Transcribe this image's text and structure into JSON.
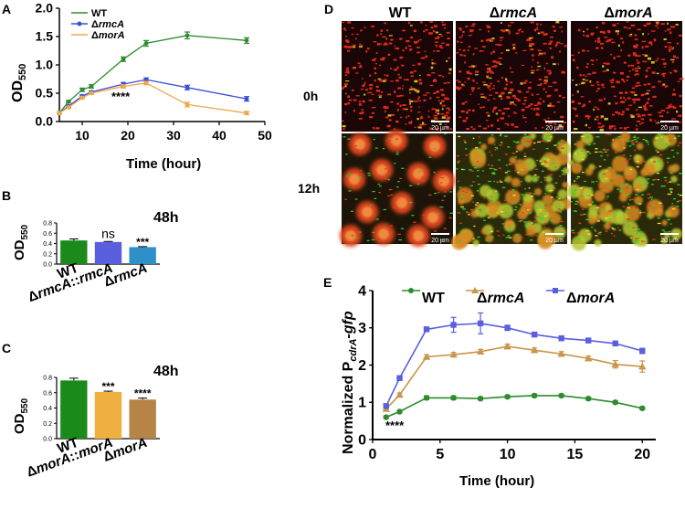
{
  "panel_labels": {
    "a": "A",
    "b": "B",
    "c": "C",
    "d": "D",
    "e": "E"
  },
  "chart_data": [
    {
      "panel": "A",
      "type": "line",
      "xlabel": "Time (hour)",
      "ylabel": "OD",
      "ylabel_sub": "550",
      "xlim": [
        5,
        50
      ],
      "ylim": [
        0,
        2
      ],
      "xticks": [
        "10",
        "20",
        "30",
        "40",
        "50"
      ],
      "yticks": [
        "0.0",
        "0.5",
        "1.0",
        "1.5",
        "2.0"
      ],
      "annotation": "****",
      "legend_prefix": "Δ",
      "series": [
        {
          "name": "WT",
          "italic": false,
          "color": "#2e8b2e",
          "x": [
            5,
            7,
            10,
            12,
            19,
            24,
            33,
            46
          ],
          "y": [
            0.15,
            0.35,
            0.56,
            0.62,
            1.1,
            1.38,
            1.52,
            1.43
          ],
          "err": [
            0.02,
            0.02,
            0.03,
            0.03,
            0.04,
            0.05,
            0.06,
            0.05
          ]
        },
        {
          "name": "rmcA",
          "italic": true,
          "color": "#3a4fd4",
          "x": [
            5,
            7,
            10,
            12,
            19,
            24,
            33,
            46
          ],
          "y": [
            0.15,
            0.27,
            0.45,
            0.52,
            0.66,
            0.74,
            0.6,
            0.4
          ],
          "err": [
            0.02,
            0.02,
            0.02,
            0.02,
            0.03,
            0.03,
            0.04,
            0.04
          ]
        },
        {
          "name": "morA",
          "italic": true,
          "color": "#f0a84c",
          "x": [
            5,
            7,
            10,
            12,
            19,
            24,
            33,
            46
          ],
          "y": [
            0.15,
            0.25,
            0.42,
            0.5,
            0.62,
            0.68,
            0.3,
            0.15
          ],
          "err": [
            0.02,
            0.02,
            0.02,
            0.02,
            0.03,
            0.03,
            0.04,
            0.03
          ]
        }
      ]
    },
    {
      "panel": "B",
      "type": "bar",
      "title": "48h",
      "ylabel": "OD",
      "ylabel_sub": "550",
      "ylim": [
        0,
        0.8
      ],
      "yticks": [
        "0.0",
        "0.2",
        "0.4",
        "0.6",
        "0.8"
      ],
      "categories": [
        "WT",
        "ΔrmcA::rmcA",
        "ΔrmcA"
      ],
      "values": [
        0.46,
        0.43,
        0.33
      ],
      "err": [
        0.03,
        0.01,
        0.01
      ],
      "colors": [
        "#1a8a1a",
        "#5a5fe0",
        "#2e8fc9"
      ],
      "annotations": [
        "",
        "ns",
        "***"
      ]
    },
    {
      "panel": "C",
      "type": "bar",
      "title": "48h",
      "ylabel": "OD",
      "ylabel_sub": "550",
      "ylim": [
        0,
        0.8
      ],
      "yticks": [
        "0.0",
        "0.2",
        "0.4",
        "0.6",
        "0.8"
      ],
      "categories": [
        "WT",
        "ΔmorA::morA",
        "ΔmorA"
      ],
      "values": [
        0.76,
        0.61,
        0.51
      ],
      "err": [
        0.03,
        0.01,
        0.02
      ],
      "colors": [
        "#1a8a1a",
        "#f0b040",
        "#b58446"
      ],
      "annotations": [
        "",
        "***",
        "****"
      ]
    },
    {
      "panel": "E",
      "type": "line",
      "xlabel": "Time (hour)",
      "ylabel": "Normalized P",
      "ylabel_sub": "cdrA",
      "ylabel_suffix": "-gfp",
      "xlim": [
        0,
        21
      ],
      "ylim": [
        0,
        4
      ],
      "xticks": [
        "0",
        "5",
        "10",
        "15",
        "20"
      ],
      "yticks": [
        "0",
        "1",
        "2",
        "3",
        "4"
      ],
      "annotation": "****",
      "legend_prefix": "Δ",
      "series": [
        {
          "name": "WT",
          "italic": false,
          "color": "#2e8b2e",
          "x": [
            1,
            2,
            4,
            6,
            8,
            10,
            12,
            14,
            16,
            18,
            20
          ],
          "y": [
            0.6,
            0.75,
            1.12,
            1.12,
            1.1,
            1.15,
            1.18,
            1.18,
            1.1,
            1.0,
            0.84
          ],
          "err": [
            0.03,
            0.03,
            0.05,
            0.05,
            0.04,
            0.04,
            0.04,
            0.04,
            0.04,
            0.04,
            0.04
          ]
        },
        {
          "name": "rmcA",
          "italic": true,
          "color": "#c9954a",
          "x": [
            1,
            2,
            4,
            6,
            8,
            10,
            12,
            14,
            16,
            18,
            20
          ],
          "y": [
            0.82,
            1.2,
            2.22,
            2.28,
            2.36,
            2.5,
            2.4,
            2.3,
            2.18,
            2.02,
            1.96
          ],
          "err": [
            0.04,
            0.05,
            0.06,
            0.06,
            0.06,
            0.06,
            0.06,
            0.06,
            0.06,
            0.1,
            0.15
          ]
        },
        {
          "name": "morA",
          "italic": true,
          "color": "#5a5fe0",
          "x": [
            1,
            2,
            4,
            6,
            8,
            10,
            12,
            14,
            16,
            18,
            20
          ],
          "y": [
            0.9,
            1.65,
            2.96,
            3.08,
            3.12,
            3.0,
            2.82,
            2.72,
            2.66,
            2.58,
            2.38
          ],
          "err": [
            0.04,
            0.05,
            0.06,
            0.2,
            0.28,
            0.07,
            0.06,
            0.06,
            0.06,
            0.06,
            0.07
          ]
        }
      ]
    }
  ],
  "microscopy": {
    "columns": [
      {
        "prefix": "",
        "name": "WT"
      },
      {
        "prefix": "Δ",
        "name": "rmcA"
      },
      {
        "prefix": "Δ",
        "name": "morA"
      }
    ],
    "rows": [
      "0h",
      "12h"
    ],
    "scale_bar": "20 µm"
  }
}
